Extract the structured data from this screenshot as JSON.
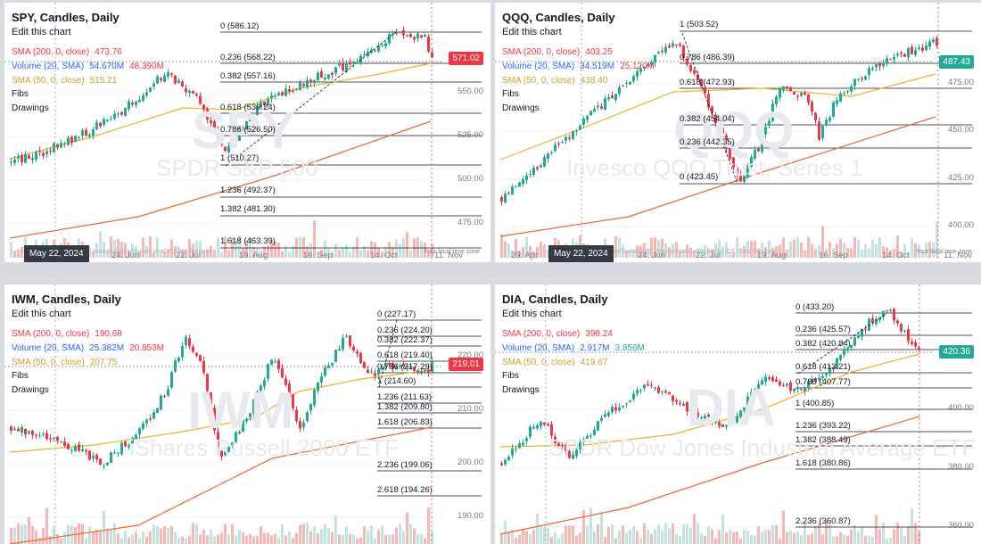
{
  "panels": [
    {
      "title": "SPY, Candles, Daily",
      "edit_label": "Edit this chart",
      "indicators": [
        {
          "label": "SMA (200, 0, close)",
          "value": "473.76",
          "value2": "",
          "color": "#f23645"
        },
        {
          "label": "Volume (20, SMA)",
          "value": "54.670M",
          "value2": "48.390M",
          "color": "#2962ff"
        },
        {
          "label": "SMA (50, 0, close)",
          "value": "515.21",
          "value2": "",
          "color": "#e6b422"
        }
      ],
      "fibs_label": "Fibs",
      "drawings_label": "Drawings",
      "watermark_symbol": "SPY",
      "watermark_name": "SPDR S&P 500",
      "fib_levels": [
        "0 (586.12)",
        "0.236 (568.22)",
        "0.382 (557.16)",
        "0.618 (539.24)",
        "0.786 (526.50)",
        "1 (510.27)",
        "1.236 (492.37)",
        "1.382 (481.30)",
        "1.618 (463.39)"
      ],
      "y_ticks": [
        "550.00",
        "525.00",
        "500.00",
        "475.00"
      ],
      "x_ticks": [
        "24. Jun",
        "22. Jul",
        "19. Aug",
        "16. Sep",
        "14. Oct",
        "11. Nov"
      ],
      "date_badge": "May 22, 2024",
      "price_badge": "571.02",
      "price_badge_color": "#f23645",
      "credit": "©2024 TradeStation LLC. Market data provided by ICE Data Services",
      "local_time": "Your local time zone"
    },
    {
      "title": "QQQ, Candles, Daily",
      "edit_label": "Edit this chart",
      "indicators": [
        {
          "label": "SMA (200, 0, close)",
          "value": "403.25",
          "value2": "",
          "color": "#f23645"
        },
        {
          "label": "Volume (20, SMA)",
          "value": "34.519M",
          "value2": "25.120M",
          "color": "#2962ff"
        },
        {
          "label": "SMA (50, 0, close)",
          "value": "438.40",
          "value2": "",
          "color": "#e6b422"
        }
      ],
      "fibs_label": "Fibs",
      "drawings_label": "Drawings",
      "watermark_symbol": "QQQ",
      "watermark_name": "Invesco QQQ Trust, Series 1",
      "fib_levels": [
        "1 (503.52)",
        "0.786 (486.39)",
        "0.618 (472.93)",
        "0.382 (454.04)",
        "0.236 (442.35)",
        "0 (423.45)"
      ],
      "y_ticks": [
        "475.00",
        "450.00",
        "425.00",
        "400.00"
      ],
      "x_ticks": [
        "29. Apr",
        "24. Jun",
        "22. Jul",
        "19. Aug",
        "16. Sep",
        "14. Oct",
        "11. Nov"
      ],
      "date_badge": "May 22, 2024",
      "price_badge": "487.43",
      "price_badge_color": "#22ab94",
      "credit": "©2024 TradeStation LLC. Market data provided by ICE Data Services",
      "local_time": "Your local time zone"
    },
    {
      "title": "IWM, Candles, Daily",
      "edit_label": "Edit this chart",
      "indicators": [
        {
          "label": "SMA (200, 0, close)",
          "value": "190.68",
          "value2": "",
          "color": "#f23645"
        },
        {
          "label": "Volume (20, SMA)",
          "value": "25.382M",
          "value2": "20.853M",
          "color": "#2962ff"
        },
        {
          "label": "SMA (50, 0, close)",
          "value": "207.75",
          "value2": "",
          "color": "#e6b422"
        }
      ],
      "fibs_label": "Fibs",
      "drawings_label": "Drawings",
      "watermark_symbol": "IWM",
      "watermark_name": "iShares Russell 2000 ETF",
      "fib_levels": [
        "0 (227.17)",
        "0.236 (224.20)",
        "0.382 (222.37)",
        "0.618 (219.40)",
        "0.786 (217.29)",
        "1 (214.60)",
        "1.236 (211.63)",
        "1.382 (209.80)",
        "1.618 (206.83)",
        "2.236 (199.06)",
        "2.618 (194.26)"
      ],
      "y_ticks": [
        "220.00",
        "210.00",
        "200.00",
        "190.00"
      ],
      "x_ticks": [],
      "date_badge": "",
      "price_badge": "219.01",
      "price_badge_color": "#f23645",
      "credit": "",
      "local_time": ""
    },
    {
      "title": "DIA, Candles, Daily",
      "edit_label": "Edit this chart",
      "indicators": [
        {
          "label": "SMA (200, 0, close)",
          "value": "398.24",
          "value2": "",
          "color": "#f23645"
        },
        {
          "label": "Volume (20, SMA)",
          "value": "2.917M",
          "value2": "3.856M",
          "color": "#2962ff"
        },
        {
          "label": "SMA (50, 0, close)",
          "value": "419.67",
          "value2": "",
          "color": "#e6b422"
        }
      ],
      "fibs_label": "Fibs",
      "drawings_label": "Drawings",
      "watermark_symbol": "DIA",
      "watermark_name": "SPDR Dow Jones Industrial Average ETF",
      "fib_levels": [
        "0 (433.20)",
        "0.236 (425.57)",
        "0.382 (420.84)",
        "0.618 (413.21)",
        "0.786 (407.77)",
        "1 (400.85)",
        "1.236 (393.22)",
        "1.382 (388.49)",
        "1.618 (380.86)",
        "2.236 (360.87)"
      ],
      "y_ticks": [
        "400.00",
        "380.00",
        "360.00"
      ],
      "x_ticks": [],
      "date_badge": "",
      "price_badge": "420.36",
      "price_badge_color": "#22ab94",
      "credit": "",
      "local_time": ""
    }
  ]
}
